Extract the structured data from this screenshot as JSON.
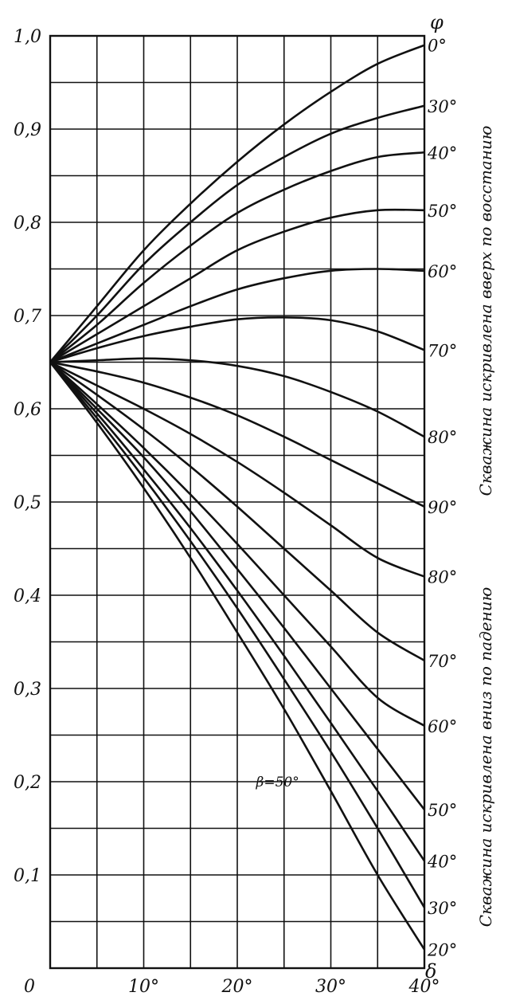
{
  "chart_data": {
    "type": "line",
    "title": "",
    "xlabel": "δ",
    "ylabel": "",
    "right_axis_symbol": "φ",
    "xlim": [
      0,
      40
    ],
    "ylim": [
      0,
      1.0
    ],
    "grid": true,
    "x_ticks": [
      {
        "value": 0,
        "label": "0"
      },
      {
        "value": 10,
        "label": "10°"
      },
      {
        "value": 20,
        "label": "20°"
      },
      {
        "value": 30,
        "label": "30°"
      },
      {
        "value": 40,
        "label": "40°"
      }
    ],
    "y_ticks": [
      {
        "value": 0.1,
        "label": "0,1"
      },
      {
        "value": 0.2,
        "label": "0,2"
      },
      {
        "value": 0.3,
        "label": "0,3"
      },
      {
        "value": 0.4,
        "label": "0,4"
      },
      {
        "value": 0.5,
        "label": "0,5"
      },
      {
        "value": 0.6,
        "label": "0,6"
      },
      {
        "value": 0.7,
        "label": "0,7"
      },
      {
        "value": 0.8,
        "label": "0,8"
      },
      {
        "value": 0.9,
        "label": "0,9"
      },
      {
        "value": 1.0,
        "label": "1,0"
      }
    ],
    "series": [
      {
        "name": "0°",
        "x": [
          0,
          5,
          10,
          15,
          20,
          25,
          30,
          35,
          40
        ],
        "y": [
          0.65,
          0.71,
          0.77,
          0.82,
          0.865,
          0.905,
          0.94,
          0.97,
          0.99
        ]
      },
      {
        "name": "30°",
        "x": [
          0,
          5,
          10,
          15,
          20,
          25,
          30,
          35,
          40
        ],
        "y": [
          0.65,
          0.7,
          0.755,
          0.8,
          0.84,
          0.87,
          0.895,
          0.912,
          0.925
        ]
      },
      {
        "name": "40°",
        "x": [
          0,
          5,
          10,
          15,
          20,
          25,
          30,
          35,
          40
        ],
        "y": [
          0.65,
          0.69,
          0.735,
          0.775,
          0.81,
          0.835,
          0.855,
          0.87,
          0.875
        ]
      },
      {
        "name": "50°",
        "x": [
          0,
          5,
          10,
          15,
          20,
          25,
          30,
          35,
          40
        ],
        "y": [
          0.65,
          0.68,
          0.71,
          0.74,
          0.77,
          0.79,
          0.805,
          0.813,
          0.813
        ]
      },
      {
        "name": "60°",
        "x": [
          0,
          5,
          10,
          15,
          20,
          25,
          30,
          35,
          40
        ],
        "y": [
          0.65,
          0.67,
          0.69,
          0.71,
          0.728,
          0.74,
          0.748,
          0.75,
          0.748
        ]
      },
      {
        "name": "70°",
        "x": [
          0,
          5,
          10,
          15,
          20,
          25,
          30,
          35,
          40
        ],
        "y": [
          0.65,
          0.665,
          0.678,
          0.688,
          0.696,
          0.698,
          0.695,
          0.683,
          0.663
        ]
      },
      {
        "name": "80°",
        "x": [
          0,
          5,
          10,
          15,
          20,
          25,
          30,
          35,
          40
        ],
        "y": [
          0.65,
          0.652,
          0.654,
          0.652,
          0.646,
          0.635,
          0.618,
          0.597,
          0.57
        ]
      },
      {
        "name": "90°",
        "x": [
          0,
          5,
          10,
          15,
          20,
          25,
          30,
          35,
          40
        ],
        "y": [
          0.65,
          0.64,
          0.628,
          0.612,
          0.593,
          0.57,
          0.545,
          0.52,
          0.495
        ]
      },
      {
        "name": "80°",
        "x": [
          0,
          5,
          10,
          15,
          20,
          25,
          30,
          35,
          40
        ],
        "y": [
          0.65,
          0.625,
          0.6,
          0.573,
          0.543,
          0.51,
          0.475,
          0.44,
          0.42
        ]
      },
      {
        "name": "70°",
        "x": [
          0,
          5,
          10,
          15,
          20,
          25,
          30,
          35,
          40
        ],
        "y": [
          0.65,
          0.615,
          0.578,
          0.538,
          0.495,
          0.45,
          0.405,
          0.36,
          0.33
        ]
      },
      {
        "name": "60°",
        "x": [
          0,
          5,
          10,
          15,
          20,
          25,
          30,
          35,
          40
        ],
        "y": [
          0.65,
          0.605,
          0.558,
          0.508,
          0.455,
          0.4,
          0.345,
          0.29,
          0.26
        ]
      },
      {
        "name": "50°",
        "x": [
          0,
          5,
          10,
          15,
          20,
          25,
          30,
          35,
          40
        ],
        "y": [
          0.65,
          0.6,
          0.548,
          0.49,
          0.428,
          0.365,
          0.3,
          0.235,
          0.17
        ]
      },
      {
        "name": "40°",
        "x": [
          0,
          5,
          10,
          15,
          20,
          25,
          30,
          35,
          40
        ],
        "y": [
          0.65,
          0.595,
          0.535,
          0.472,
          0.405,
          0.335,
          0.263,
          0.19,
          0.115
        ]
      },
      {
        "name": "30°",
        "x": [
          0,
          5,
          10,
          15,
          20,
          25,
          30,
          35,
          40
        ],
        "y": [
          0.65,
          0.59,
          0.526,
          0.458,
          0.386,
          0.31,
          0.232,
          0.15,
          0.065
        ]
      },
      {
        "name": "20°",
        "x": [
          0,
          5,
          10,
          15,
          20,
          25,
          30,
          35,
          40
        ],
        "y": [
          0.65,
          0.585,
          0.515,
          0.44,
          0.36,
          0.278,
          0.19,
          0.1,
          0.02
        ]
      }
    ],
    "annotations": [
      {
        "text": "β=50°",
        "x": 22,
        "y": 0.195
      }
    ],
    "side_labels": {
      "upper": "Скважина искривлена вверх по восстанию",
      "lower": "Скважина искривлена вниз по падению"
    }
  }
}
